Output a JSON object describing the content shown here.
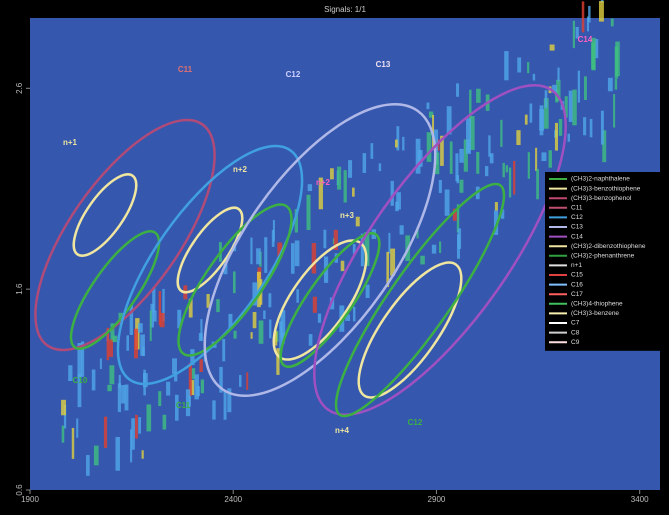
{
  "chart_data": {
    "type": "contour",
    "title": "Signals: 1/1",
    "xlim": [
      1900,
      3450
    ],
    "xticks": [
      1900,
      2400,
      2900,
      3400
    ],
    "ylim": [
      0.6,
      2.95
    ],
    "yticks": [
      0.6,
      1.6,
      2.6
    ],
    "annotations": [
      "C11",
      "C12",
      "C13",
      "C14",
      "n+1",
      "n+2",
      "n+3",
      "n+4",
      "n+2",
      "C10",
      "C11",
      "C12"
    ],
    "legend": [
      {
        "name": "(CH3)2-naphthalene",
        "color": "#3cb043"
      },
      {
        "name": "(CH3)3-benzothiophene",
        "color": "#f0e6a0"
      },
      {
        "name": "(CH3)3-benzophenol",
        "color": "#c04870"
      },
      {
        "name": "C11",
        "color": "#c05070"
      },
      {
        "name": "C12",
        "color": "#40a0e0"
      },
      {
        "name": "C13",
        "color": "#b0b8e8"
      },
      {
        "name": "C14",
        "color": "#a050c0"
      },
      {
        "name": "(CH3)2-dibenzothiophene",
        "color": "#f0e6a0"
      },
      {
        "name": "(CH3)2-phenanthrene",
        "color": "#30a040"
      },
      {
        "name": "n+1",
        "color": "#e0e0e0"
      },
      {
        "name": "C15",
        "color": "#e04040"
      },
      {
        "name": "C16",
        "color": "#80c0ff"
      },
      {
        "name": "C17",
        "color": "#ff6060"
      },
      {
        "name": "(CH3)4-thiophene",
        "color": "#40c060"
      },
      {
        "name": "(CH3)3-benzene",
        "color": "#f8f0b0"
      },
      {
        "name": "C7",
        "color": "#ffffff"
      },
      {
        "name": "C8",
        "color": "#d0d0d0"
      },
      {
        "name": "C9",
        "color": "#ffe0e0"
      }
    ]
  }
}
